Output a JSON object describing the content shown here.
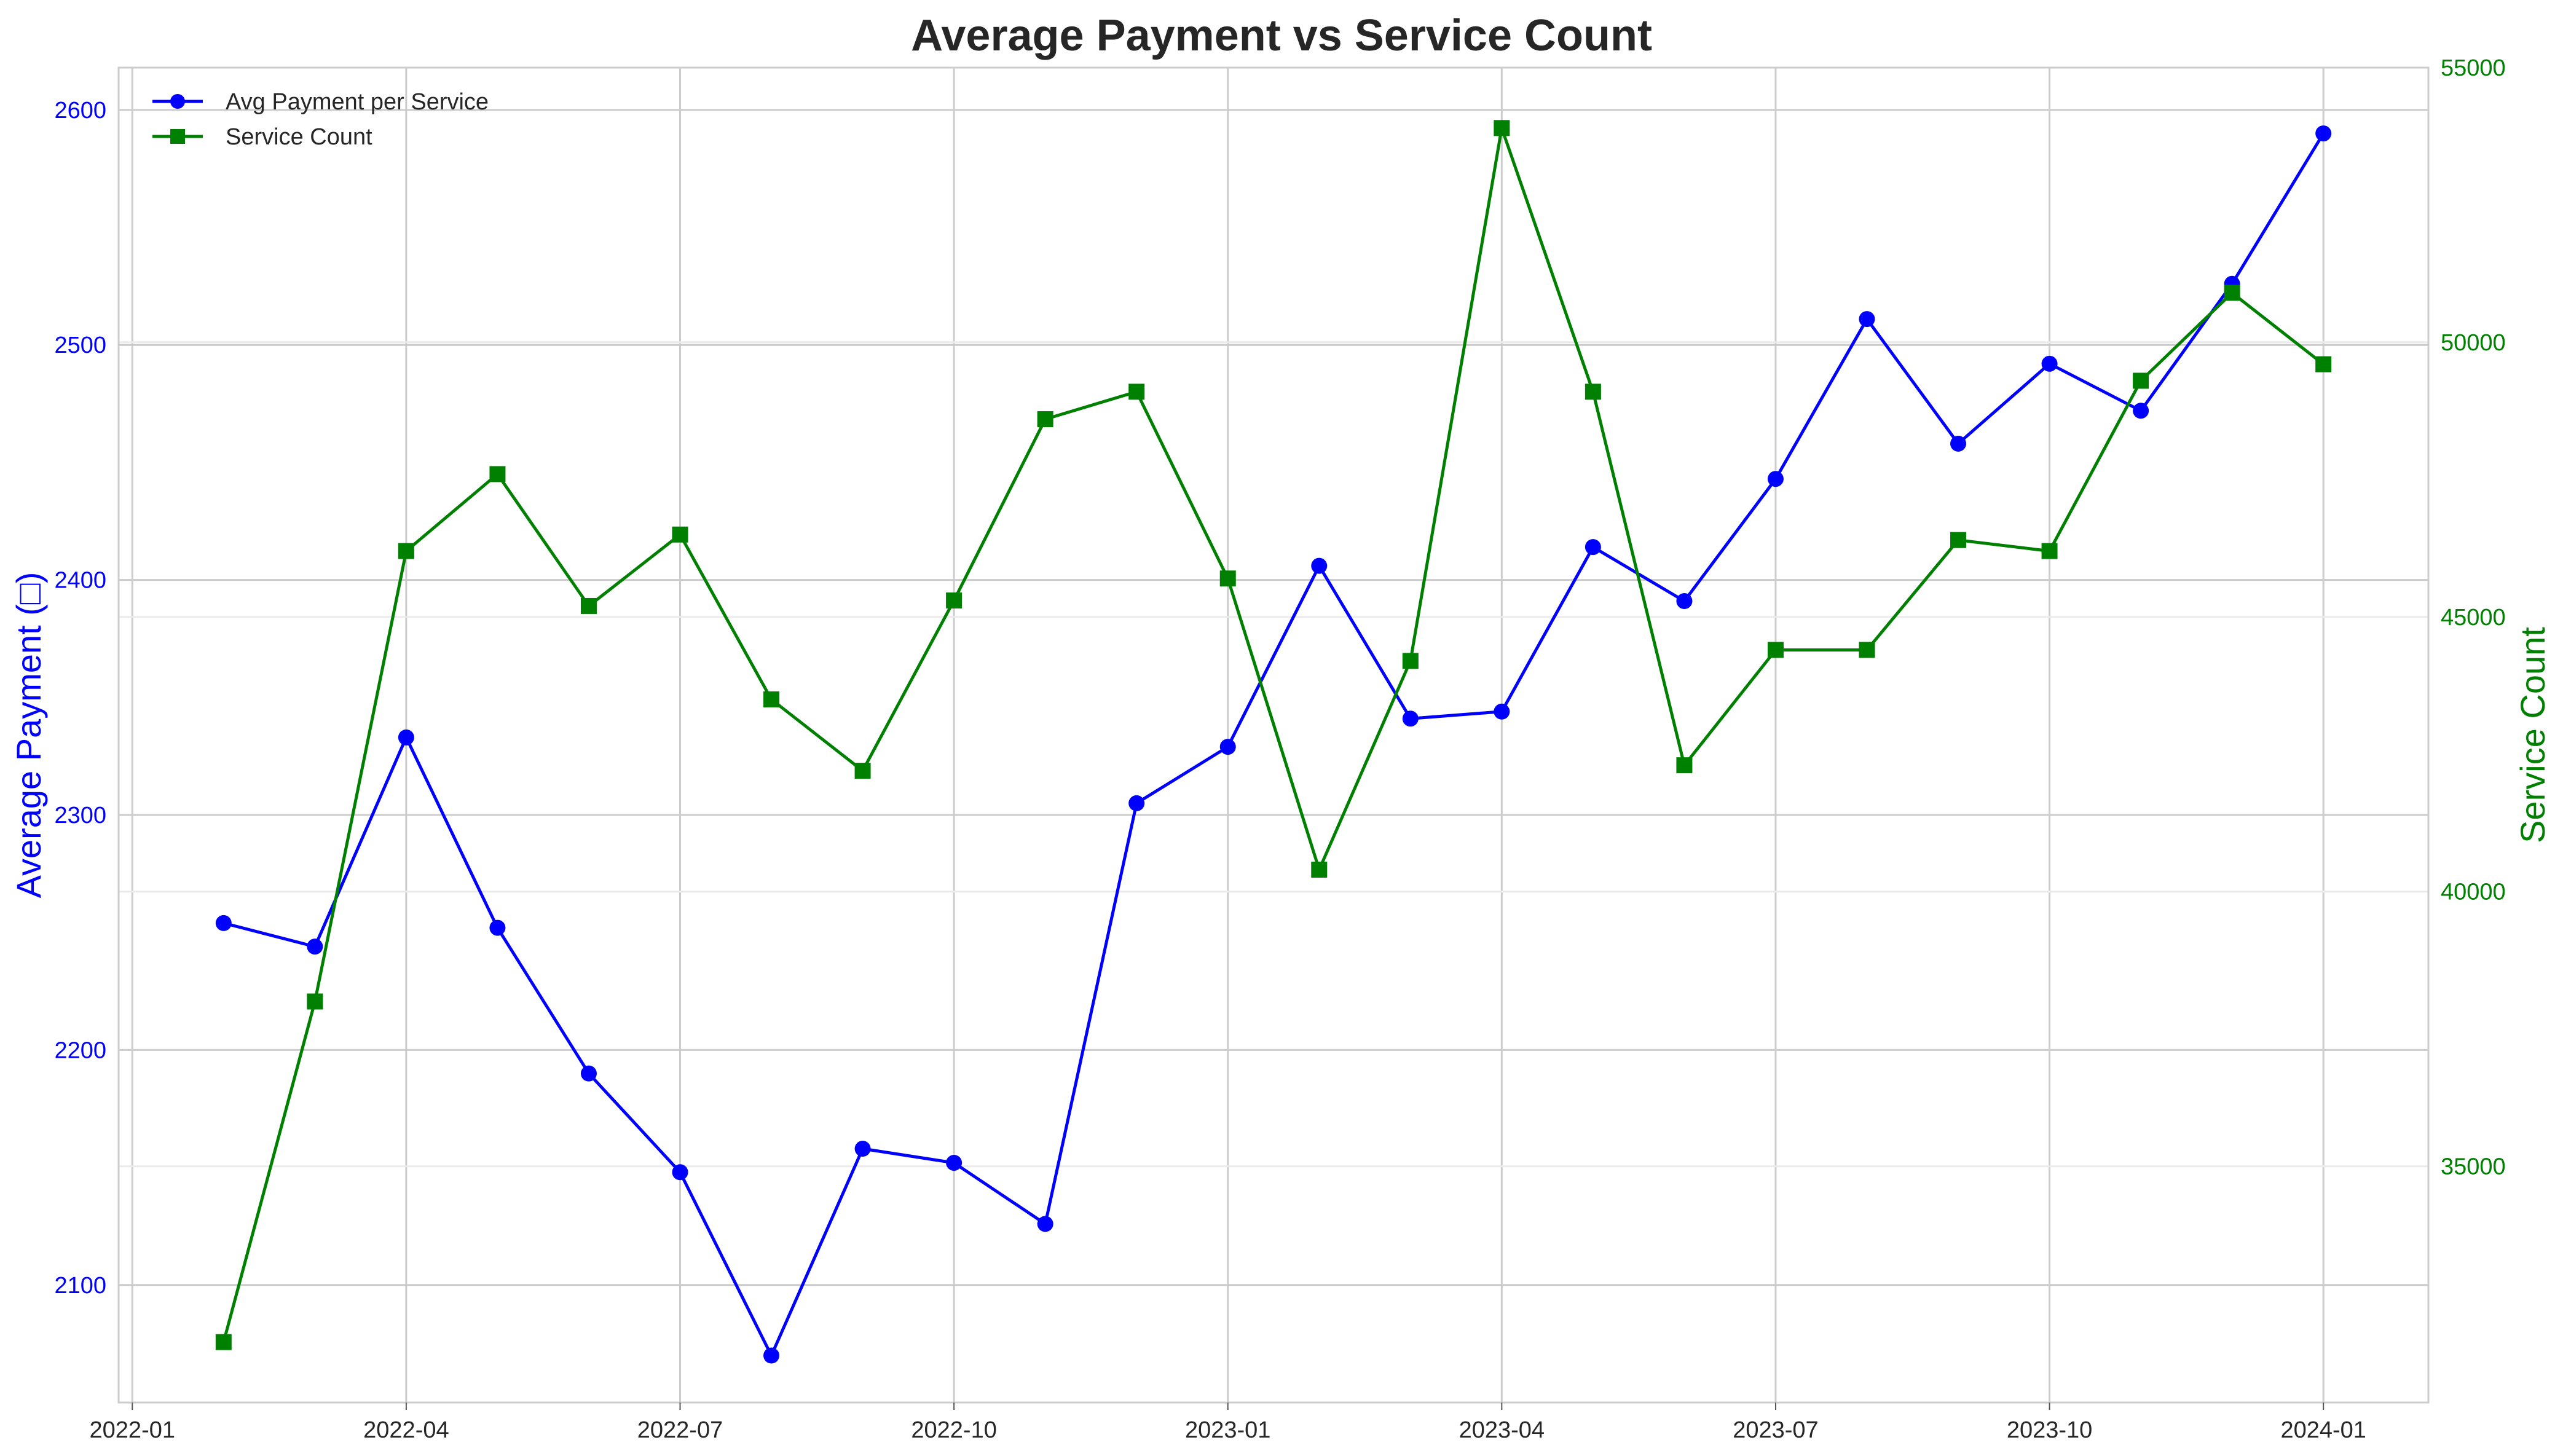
{
  "chart_data": {
    "type": "line",
    "title": "Average Payment vs Service Count",
    "xlabel": "",
    "ylabel_left": "Average Payment (□)",
    "ylabel_right": "Service Count",
    "x_tick_labels": [
      "2022-01",
      "2022-04",
      "2022-07",
      "2022-10",
      "2023-01",
      "2023-04",
      "2023-07",
      "2023-10",
      "2024-01"
    ],
    "x": [
      "2022-02",
      "2022-03",
      "2022-04",
      "2022-05",
      "2022-06",
      "2022-07",
      "2022-08",
      "2022-09",
      "2022-10",
      "2022-11",
      "2022-12",
      "2023-01",
      "2023-02",
      "2023-03",
      "2023-04",
      "2023-05",
      "2023-06",
      "2023-07",
      "2023-08",
      "2023-09",
      "2023-10",
      "2023-11",
      "2023-12",
      "2024-01"
    ],
    "ylim_left": [
      2050,
      2618
    ],
    "yticks_left": [
      2100,
      2200,
      2300,
      2400,
      2500,
      2600
    ],
    "ylim_right": [
      30700,
      55000
    ],
    "yticks_right": [
      35000,
      40000,
      45000,
      50000,
      55000
    ],
    "grid": true,
    "legend_position": "upper left",
    "series": [
      {
        "name": "Avg Payment per Service",
        "axis": "left",
        "color": "#0000ff",
        "marker": "circle",
        "values": [
          2254,
          2244,
          2333,
          2252,
          2190,
          2148,
          2070,
          2158,
          2152,
          2126,
          2305,
          2329,
          2406,
          2341,
          2344,
          2414,
          2391,
          2443,
          2511,
          2458,
          2492,
          2472,
          2526,
          2590
        ]
      },
      {
        "name": "Service Count",
        "axis": "right",
        "color": "#008000",
        "marker": "square",
        "values": [
          31800,
          38000,
          46200,
          47600,
          45200,
          46500,
          43500,
          42200,
          45300,
          48600,
          49100,
          45700,
          40400,
          44200,
          53900,
          49100,
          42300,
          44400,
          44400,
          46400,
          46200,
          49300,
          50900,
          49600
        ]
      }
    ]
  }
}
